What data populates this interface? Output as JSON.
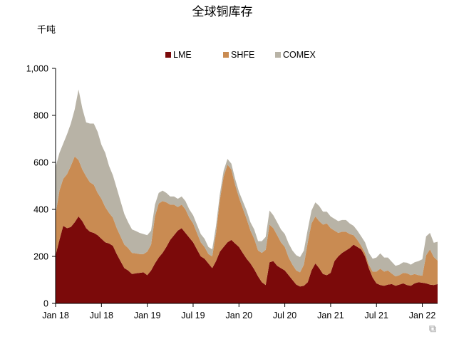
{
  "chart_data": {
    "type": "area",
    "stacked": true,
    "title": "全球铜库存",
    "ylabel": "千吨",
    "xlabel": "",
    "ylim": [
      0,
      1000
    ],
    "yticks": [
      0,
      200,
      400,
      600,
      800,
      1000
    ],
    "ytick_labels": [
      "0",
      "200",
      "400",
      "600",
      "800",
      "1,000"
    ],
    "xticks": [
      0,
      6,
      12,
      18,
      24,
      30,
      36,
      42,
      48
    ],
    "xtick_labels": [
      "Jan 18",
      "Jul 18",
      "Jan 19",
      "Jul 19",
      "Jan 20",
      "Jul 20",
      "Jan 21",
      "Jul 21",
      "Jan 22"
    ],
    "xlim": [
      0,
      50
    ],
    "grid": false,
    "legend": "top-center",
    "x": [
      0,
      0.5,
      1,
      1.5,
      2,
      2.5,
      3,
      3.5,
      4,
      4.5,
      5,
      5.5,
      6,
      6.5,
      7,
      7.5,
      8,
      8.5,
      9,
      9.5,
      10,
      10.5,
      11,
      11.5,
      12,
      12.5,
      13,
      13.5,
      14,
      14.5,
      15,
      15.5,
      16,
      16.5,
      17,
      17.5,
      18,
      18.5,
      19,
      19.5,
      20,
      20.5,
      21,
      21.5,
      22,
      22.5,
      23,
      23.5,
      24,
      24.5,
      25,
      25.5,
      26,
      26.5,
      27,
      27.5,
      28,
      28.5,
      29,
      29.5,
      30,
      30.5,
      31,
      31.5,
      32,
      32.5,
      33,
      33.5,
      34,
      34.5,
      35,
      35.5,
      36,
      36.5,
      37,
      37.5,
      38,
      38.5,
      39,
      39.5,
      40,
      40.5,
      41,
      41.5,
      42,
      42.5,
      43,
      43.5,
      44,
      44.5,
      45,
      45.5,
      46,
      46.5,
      47,
      47.5,
      48,
      48.5,
      49,
      49.5,
      50
    ],
    "series": [
      {
        "name": "LME",
        "color": "#7b0a0a",
        "values": [
          205,
          270,
          330,
          320,
          325,
          345,
          370,
          350,
          320,
          305,
          300,
          290,
          275,
          260,
          255,
          245,
          210,
          180,
          150,
          140,
          125,
          128,
          130,
          132,
          120,
          140,
          170,
          195,
          215,
          240,
          270,
          290,
          310,
          320,
          300,
          280,
          260,
          230,
          200,
          190,
          170,
          150,
          180,
          220,
          240,
          260,
          270,
          255,
          240,
          215,
          190,
          170,
          145,
          115,
          90,
          78,
          175,
          180,
          160,
          150,
          140,
          120,
          100,
          80,
          72,
          75,
          90,
          140,
          170,
          150,
          125,
          120,
          130,
          180,
          200,
          215,
          225,
          235,
          250,
          240,
          230,
          200,
          150,
          110,
          85,
          78,
          75,
          80,
          82,
          75,
          80,
          85,
          78,
          75,
          85,
          90,
          88,
          85,
          80,
          78,
          82
        ]
      },
      {
        "name": "SHFE",
        "color": "#c98b52",
        "values": [
          175,
          210,
          200,
          230,
          260,
          280,
          240,
          220,
          220,
          210,
          205,
          180,
          170,
          150,
          130,
          120,
          110,
          105,
          100,
          95,
          90,
          85,
          80,
          78,
          100,
          110,
          200,
          230,
          220,
          190,
          150,
          130,
          100,
          100,
          100,
          85,
          80,
          70,
          60,
          50,
          40,
          50,
          120,
          220,
          300,
          330,
          300,
          250,
          210,
          190,
          170,
          140,
          130,
          110,
          125,
          150,
          160,
          140,
          130,
          110,
          100,
          75,
          65,
          60,
          60,
          90,
          170,
          200,
          200,
          200,
          210,
          220,
          190,
          130,
          100,
          90,
          80,
          60,
          40,
          30,
          15,
          15,
          15,
          25,
          50,
          70,
          60,
          60,
          45,
          40,
          40,
          45,
          50,
          45,
          40,
          30,
          30,
          120,
          150,
          120,
          100
        ]
      },
      {
        "name": "COMEX",
        "color": "#b8b3a6",
        "values": [
          200,
          160,
          150,
          170,
          180,
          200,
          300,
          260,
          230,
          250,
          260,
          260,
          230,
          230,
          200,
          180,
          170,
          150,
          130,
          110,
          100,
          95,
          90,
          85,
          70,
          60,
          50,
          45,
          45,
          40,
          35,
          35,
          35,
          35,
          35,
          35,
          35,
          35,
          35,
          35,
          30,
          30,
          30,
          25,
          25,
          25,
          25,
          25,
          25,
          30,
          35,
          35,
          40,
          40,
          50,
          55,
          60,
          55,
          55,
          55,
          55,
          60,
          60,
          65,
          65,
          60,
          55,
          55,
          60,
          65,
          55,
          50,
          50,
          50,
          50,
          50,
          50,
          45,
          40,
          40,
          40,
          45,
          50,
          55,
          60,
          65,
          60,
          55,
          50,
          45,
          45,
          45,
          45,
          45,
          50,
          60,
          70,
          80,
          70,
          60,
          80
        ]
      }
    ]
  }
}
